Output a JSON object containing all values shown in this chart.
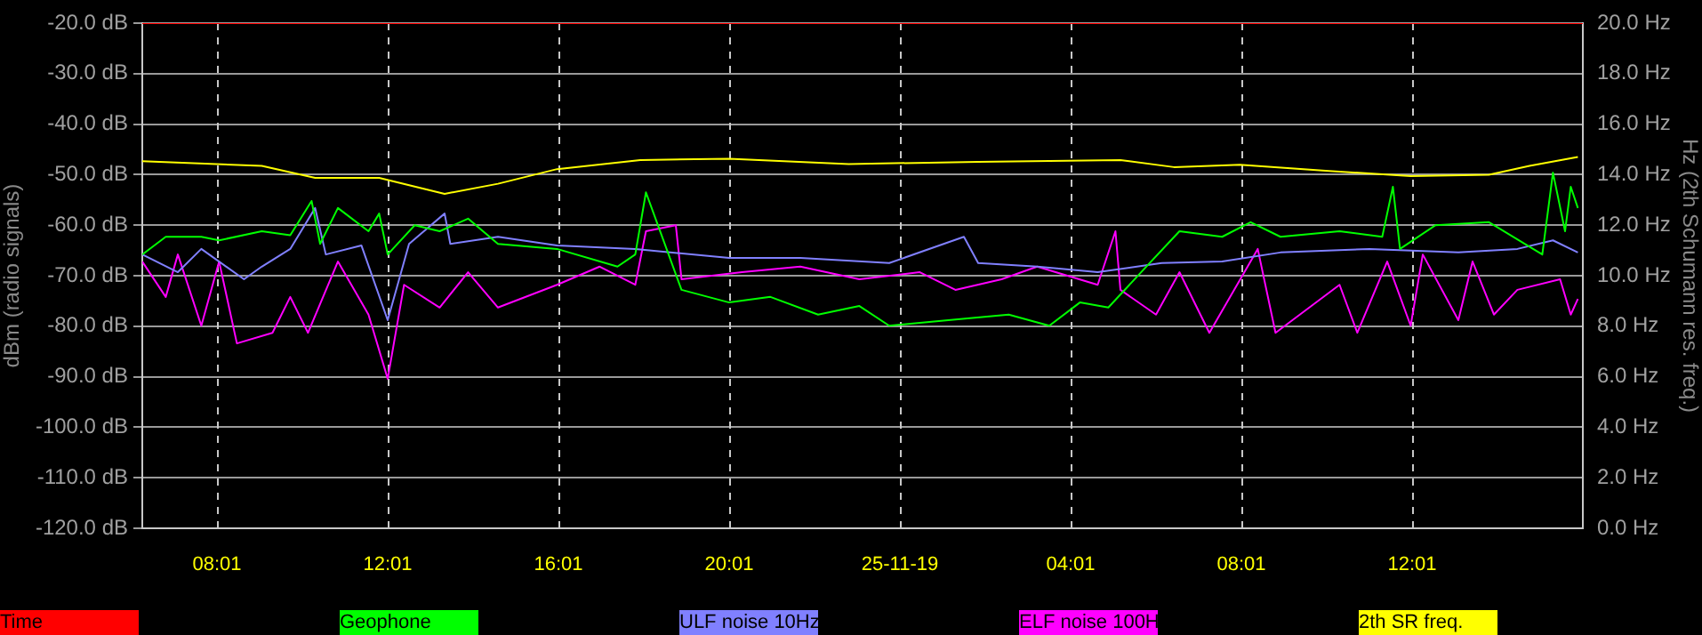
{
  "chart_data": {
    "type": "line",
    "ylabel": "dBm (radio signals)",
    "y2label": "Hz (2th Schumann res. freq.)",
    "xlim": [
      "--11-24T06:16",
      "--11-25T16:01"
    ],
    "xticks": [
      {
        "value": "--11-24T08:01",
        "label": "08:01"
      },
      {
        "value": "--11-24T12:01",
        "label": "12:01"
      },
      {
        "value": "--11-24T16:01",
        "label": "16:01"
      },
      {
        "value": "--11-24T20:01",
        "label": "20:01"
      },
      {
        "value": "--11-25T00:01",
        "label": "25-11-19"
      },
      {
        "value": "--11-25T04:01",
        "label": "04:01"
      },
      {
        "value": "--11-25T08:01",
        "label": "08:01"
      },
      {
        "value": "--11-25T12:01",
        "label": "12:01"
      }
    ],
    "ylim": [
      -120,
      -20
    ],
    "yticks": [
      {
        "value": -120,
        "label": "-120.0 dB"
      },
      {
        "value": -110,
        "label": "-110.0 dB"
      },
      {
        "value": -100,
        "label": "-100.0 dB"
      },
      {
        "value": -90,
        "label": "-90.0 dB"
      },
      {
        "value": -80,
        "label": "-80.0 dB"
      },
      {
        "value": -70,
        "label": "-70.0 dB"
      },
      {
        "value": -60,
        "label": "-60.0 dB"
      },
      {
        "value": -50,
        "label": "-50.0 dB"
      },
      {
        "value": -40,
        "label": "-40.0 dB"
      },
      {
        "value": -30,
        "label": "-30.0 dB"
      },
      {
        "value": -20,
        "label": "-20.0 dB"
      }
    ],
    "y2lim": [
      0,
      20
    ],
    "y2ticks": [
      {
        "value": 0,
        "label": "0.0 Hz"
      },
      {
        "value": 2,
        "label": "2.0 Hz"
      },
      {
        "value": 4,
        "label": "4.0 Hz"
      },
      {
        "value": 6,
        "label": "6.0 Hz"
      },
      {
        "value": 8,
        "label": "8.0 Hz"
      },
      {
        "value": 10,
        "label": "10.0 Hz"
      },
      {
        "value": 12,
        "label": "12.0 Hz"
      },
      {
        "value": 14,
        "label": "14.0 Hz"
      },
      {
        "value": 16,
        "label": "16.0 Hz"
      },
      {
        "value": 18,
        "label": "18.0 Hz"
      },
      {
        "value": 20,
        "label": "20.0 Hz"
      }
    ],
    "grid": true,
    "legend": "bottom",
    "marker": "none",
    "line_style": "solid",
    "series": [
      {
        "name": "Time",
        "color": "#ff0000",
        "axis": "y",
        "x": [
          "--11-24T06:16",
          "--11-25T16:01"
        ],
        "values": [
          -20,
          -20
        ]
      },
      {
        "name": "Geophone",
        "color": "#00ff00",
        "axis": "y",
        "x": [
          "--11-24T06:16",
          "--11-24T06:49",
          "--11-24T07:39",
          "--11-24T08:04",
          "--11-24T09:04",
          "--11-24T09:44",
          "--11-24T10:14",
          "--11-24T10:26",
          "--11-24T10:51",
          "--11-24T11:34",
          "--11-24T11:49",
          "--11-24T12:01",
          "--11-24T12:39",
          "--11-24T13:14",
          "--11-24T13:54",
          "--11-24T14:36",
          "--11-24T15:59",
          "--11-24T17:24",
          "--11-24T17:49",
          "--11-24T18:04",
          "--11-24T18:54",
          "--11-24T20:01",
          "--11-24T20:59",
          "--11-24T22:06",
          "--11-24T23:04",
          "--11-24T23:46",
          "--11-25T01:09",
          "--11-25T02:34",
          "--11-25T03:31",
          "--11-25T04:14",
          "--11-25T04:54",
          "--11-25T05:54",
          "--11-25T06:34",
          "--11-25T07:34",
          "--11-25T08:14",
          "--11-25T08:56",
          "--11-25T10:19",
          "--11-25T11:19",
          "--11-25T11:34",
          "--11-25T11:44",
          "--11-25T12:34",
          "--11-25T13:49",
          "--11-25T15:04",
          "--11-25T15:19",
          "--11-25T15:36",
          "--11-25T15:44",
          "--11-25T15:54"
        ],
        "values": [
          -65.8,
          -62.3,
          -62.3,
          -63,
          -61.2,
          -62,
          -55.2,
          -63.7,
          -56.6,
          -61.2,
          -57.7,
          -65.8,
          -60,
          -61.2,
          -58.7,
          -63.7,
          -64.7,
          -68.2,
          -65.8,
          -53.5,
          -72.8,
          -75.3,
          -74.2,
          -77.7,
          -76,
          -79.9,
          -78.8,
          -77.7,
          -79.9,
          -75.3,
          -76.3,
          -67.2,
          -61.2,
          -62.3,
          -59.4,
          -62.3,
          -61.2,
          -62.3,
          -52.4,
          -64.7,
          -60,
          -59.4,
          -65.8,
          -49.6,
          -61.2,
          -52.4,
          -56.6
        ]
      },
      {
        "name": "ULF noise 10Hz",
        "color": "#8080ff",
        "axis": "y",
        "x": [
          "--11-24T06:16",
          "--11-24T07:06",
          "--11-24T07:39",
          "--11-24T08:39",
          "--11-24T09:04",
          "--11-24T09:44",
          "--11-24T10:19",
          "--11-24T10:34",
          "--11-24T11:24",
          "--11-24T12:01",
          "--11-24T12:31",
          "--11-24T13:21",
          "--11-24T13:29",
          "--11-24T14:36",
          "--11-24T15:59",
          "--11-24T17:49",
          "--11-24T20:01",
          "--11-24T21:41",
          "--11-24T23:46",
          "--11-25T01:31",
          "--11-25T01:51",
          "--11-25T03:14",
          "--11-25T04:39",
          "--11-25T06:09",
          "--11-25T07:34",
          "--11-25T08:56",
          "--11-25T11:01",
          "--11-25T13:06",
          "--11-25T14:29",
          "--11-25T15:19",
          "--11-25T15:54"
        ],
        "values": [
          -65.8,
          -69.3,
          -64.7,
          -70.7,
          -68.2,
          -64.7,
          -56.6,
          -65.8,
          -64,
          -78.8,
          -63.7,
          -57.7,
          -63.7,
          -62.3,
          -64,
          -64.7,
          -66.5,
          -66.5,
          -67.5,
          -62.3,
          -67.5,
          -68.2,
          -69.3,
          -67.5,
          -67.2,
          -65.4,
          -64.7,
          -65.4,
          -64.7,
          -63,
          -65.4
        ]
      },
      {
        "name": "ELF noise 100H",
        "color": "#ff00ff",
        "axis": "y",
        "x": [
          "--11-24T06:16",
          "--11-24T06:49",
          "--11-24T07:06",
          "--11-24T07:39",
          "--11-24T08:04",
          "--11-24T08:29",
          "--11-24T09:19",
          "--11-24T09:44",
          "--11-24T10:09",
          "--11-24T10:51",
          "--11-24T11:34",
          "--11-24T12:01",
          "--11-24T12:24",
          "--11-24T13:14",
          "--11-24T13:54",
          "--11-24T14:36",
          "--11-24T15:59",
          "--11-24T16:59",
          "--11-24T17:49",
          "--11-24T18:04",
          "--11-24T18:46",
          "--11-24T18:54",
          "--11-24T20:19",
          "--11-24T21:41",
          "--11-24T23:04",
          "--11-25T00:29",
          "--11-25T01:19",
          "--11-25T02:24",
          "--11-25T03:14",
          "--11-25T04:39",
          "--11-25T05:04",
          "--11-25T05:11",
          "--11-25T06:01",
          "--11-25T06:34",
          "--11-25T07:16",
          "--11-25T08:24",
          "--11-25T08:49",
          "--11-25T10:19",
          "--11-25T10:44",
          "--11-25T11:26",
          "--11-25T11:59",
          "--11-25T12:16",
          "--11-25T13:06",
          "--11-25T13:26",
          "--11-25T13:56",
          "--11-25T14:29",
          "--11-25T15:29",
          "--11-25T15:44",
          "--11-25T15:54"
        ],
        "values": [
          -67.2,
          -74.2,
          -65.8,
          -79.9,
          -67.2,
          -83.4,
          -81.3,
          -74.2,
          -81.3,
          -67.2,
          -77.7,
          -90.4,
          -71.8,
          -76.3,
          -69.3,
          -76.3,
          -71.8,
          -68.2,
          -71.8,
          -61.2,
          -60,
          -70.7,
          -69.3,
          -68.2,
          -70.7,
          -69.3,
          -72.8,
          -70.7,
          -68.2,
          -71.8,
          -61.2,
          -72.8,
          -77.7,
          -69.3,
          -81.3,
          -64.7,
          -81.3,
          -71.8,
          -81.3,
          -67.2,
          -79.9,
          -65.8,
          -78.8,
          -67.2,
          -77.7,
          -72.8,
          -70.7,
          -77.7,
          -74.6
        ]
      },
      {
        "name": "2th SR freq.",
        "color": "#ffff00",
        "axis": "y2",
        "x": [
          "--11-24T06:16",
          "--11-24T09:04",
          "--11-24T10:19",
          "--11-24T11:49",
          "--11-24T13:21",
          "--11-24T14:36",
          "--11-24T15:59",
          "--11-24T17:56",
          "--11-24T20:01",
          "--11-24T22:49",
          "--11-25T01:51",
          "--11-25T05:11",
          "--11-25T06:26",
          "--11-25T07:59",
          "--11-25T10:04",
          "--11-25T11:59",
          "--11-25T13:49",
          "--11-25T14:46",
          "--11-25T15:54"
        ],
        "values": [
          14.53,
          14.35,
          13.87,
          13.87,
          13.24,
          13.64,
          14.22,
          14.58,
          14.63,
          14.42,
          14.51,
          14.58,
          14.3,
          14.39,
          14.15,
          13.94,
          14.0,
          14.35,
          14.7
        ]
      }
    ]
  }
}
